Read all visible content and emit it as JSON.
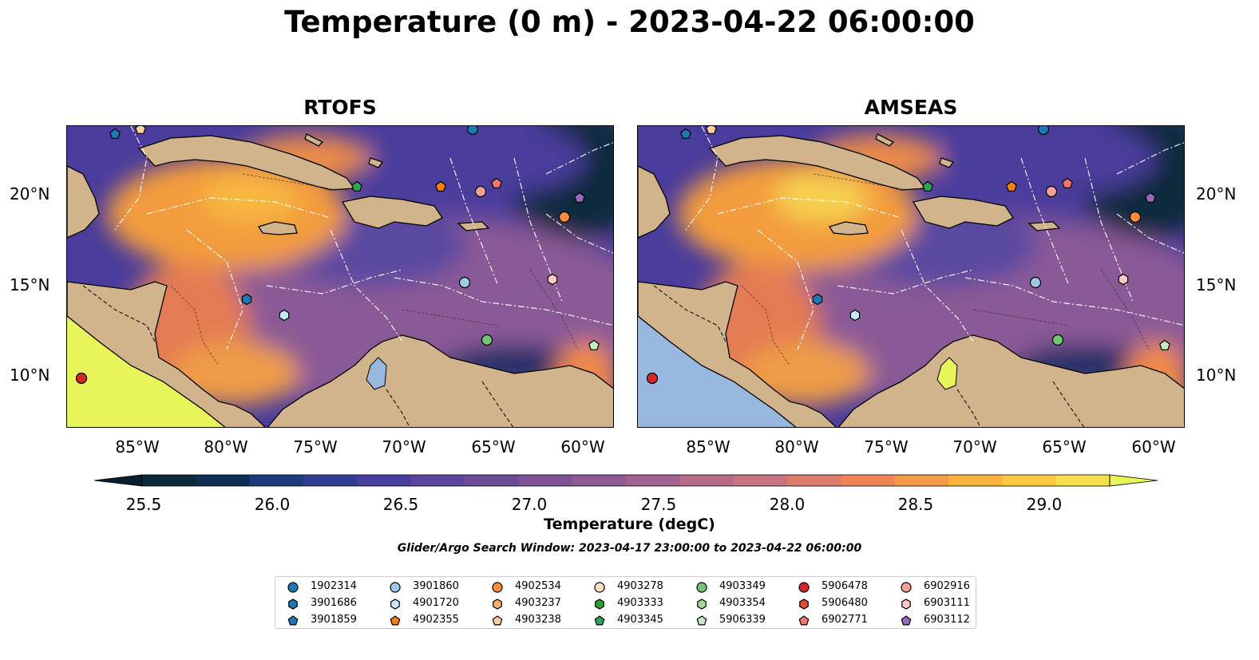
{
  "title": "Temperature (0 m) - 2023-04-22 06:00:00",
  "panels": [
    {
      "title": "RTOFS"
    },
    {
      "title": "AMSEAS"
    }
  ],
  "lat_labels": [
    "20°N",
    "15°N",
    "10°N"
  ],
  "lon_labels": [
    "85°W",
    "80°W",
    "75°W",
    "70°W",
    "65°W",
    "60°W"
  ],
  "colorbar": {
    "label": "Temperature (degC)",
    "ticks": [
      "25.5",
      "26.0",
      "26.5",
      "27.0",
      "27.5",
      "28.0",
      "28.5",
      "29.0"
    ],
    "colors": [
      "#0a2a3c",
      "#0f2e55",
      "#1d3a7c",
      "#2e3c94",
      "#463ea0",
      "#5b449e",
      "#6c4a98",
      "#7d5296",
      "#8f5a92",
      "#a2618e",
      "#b66a88",
      "#c97280",
      "#dc7a6c",
      "#ec8454",
      "#f59b45",
      "#f9b13c",
      "#fbc842",
      "#f4e04a"
    ],
    "extend_low_color": "#08202e",
    "extend_high_color": "#e8f55a"
  },
  "search_window": "Glider/Argo Search Window: 2023-04-17 23:00:00 to 2023-04-22 06:00:00",
  "legend": [
    {
      "id": "1902314",
      "color": "#1f77b4",
      "marker": "circle"
    },
    {
      "id": "3901686",
      "color": "#1f77b4",
      "marker": "hexagon"
    },
    {
      "id": "3901859",
      "color": "#1f77b4",
      "marker": "pentagon"
    },
    {
      "id": "3901860",
      "color": "#9ecae1",
      "marker": "circle"
    },
    {
      "id": "4901720",
      "color": "#c6e7f5",
      "marker": "hexagon"
    },
    {
      "id": "4902355",
      "color": "#ff7f0e",
      "marker": "pentagon"
    },
    {
      "id": "4902534",
      "color": "#fd8d3c",
      "marker": "circle"
    },
    {
      "id": "4903237",
      "color": "#fdae6b",
      "marker": "hexagon"
    },
    {
      "id": "4903238",
      "color": "#fdd0a2",
      "marker": "pentagon"
    },
    {
      "id": "4903278",
      "color": "#fde0c8",
      "marker": "circle"
    },
    {
      "id": "4903333",
      "color": "#2ca02c",
      "marker": "hexagon"
    },
    {
      "id": "4903345",
      "color": "#31a354",
      "marker": "pentagon"
    },
    {
      "id": "4903349",
      "color": "#74c476",
      "marker": "circle"
    },
    {
      "id": "4903354",
      "color": "#a1d99b",
      "marker": "hexagon"
    },
    {
      "id": "5906339",
      "color": "#c7e9c0",
      "marker": "pentagon"
    },
    {
      "id": "5906478",
      "color": "#d62728",
      "marker": "circle"
    },
    {
      "id": "5906480",
      "color": "#e34a33",
      "marker": "hexagon"
    },
    {
      "id": "6902771",
      "color": "#f07870",
      "marker": "pentagon"
    },
    {
      "id": "6902916",
      "color": "#f4a09a",
      "marker": "circle"
    },
    {
      "id": "6903111",
      "color": "#fcc8c5",
      "marker": "hexagon"
    },
    {
      "id": "6903112",
      "color": "#9467bd",
      "marker": "pentagon"
    }
  ],
  "colors": {
    "land": "#d2b48c",
    "warm_sea": "#f39c3d",
    "mid_sea": "#8a5a96",
    "cool_sea": "#4a3c9c",
    "deep_cool": "#0b2a3e",
    "pacific_yellow": "#e8f55a",
    "pacific_blue": "#98b8e0"
  }
}
